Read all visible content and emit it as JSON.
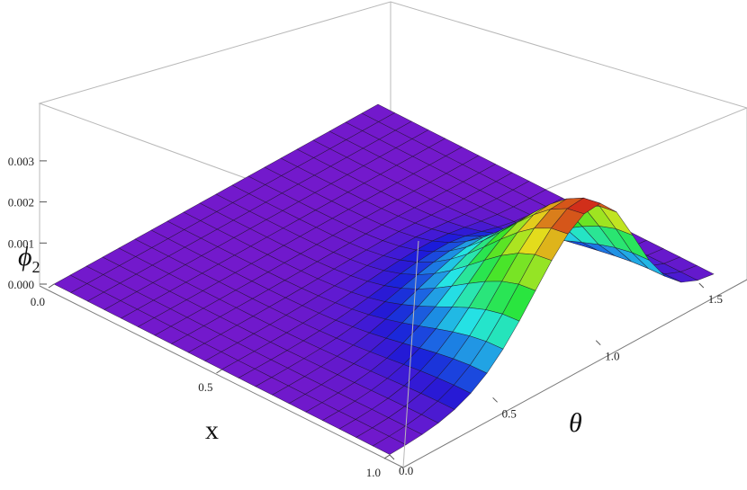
{
  "chart_data": {
    "type": "surface3d",
    "x_axis": {
      "label": "x",
      "range": [
        0.0,
        1.0
      ],
      "ticks": [
        {
          "value": 0.0,
          "label": "0.0"
        },
        {
          "value": 0.5,
          "label": "0.5"
        },
        {
          "value": 1.0,
          "label": "1.0"
        }
      ]
    },
    "y_axis": {
      "label": "θ",
      "range": [
        0.0,
        1.5708
      ],
      "ticks": [
        {
          "value": 0.0,
          "label": "0.0"
        },
        {
          "value": 0.5,
          "label": "0.5"
        },
        {
          "value": 1.0,
          "label": "1.0"
        },
        {
          "value": 1.5,
          "label": "1.5"
        }
      ]
    },
    "z_axis": {
      "label_main": "ϕ",
      "label_sub": "2",
      "range": [
        0.0,
        0.0035
      ],
      "ticks": [
        {
          "value": 0.0,
          "label": "0.000"
        },
        {
          "value": 0.001,
          "label": "0.001"
        },
        {
          "value": 0.002,
          "label": "0.002"
        },
        {
          "value": 0.003,
          "label": "0.003"
        }
      ]
    },
    "surface": {
      "peak_value": 0.0033,
      "peak_x": 1.0,
      "peak_theta": 1.0,
      "colormap": "rainbow",
      "mesh_lines": 21
    },
    "colors": {
      "low": "#6f2bb0",
      "high": "#e8201c"
    }
  }
}
